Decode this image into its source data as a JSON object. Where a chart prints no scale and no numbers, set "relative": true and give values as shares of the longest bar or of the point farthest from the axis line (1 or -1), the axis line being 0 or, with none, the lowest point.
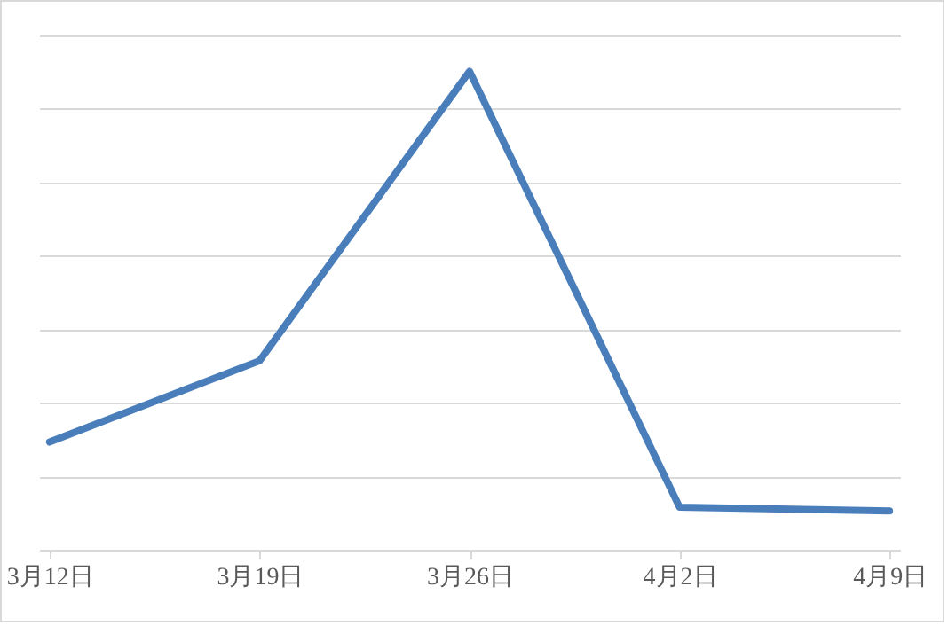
{
  "chart_data": {
    "type": "line",
    "relative": true,
    "categories": [
      "3月12日",
      "3月19日",
      "3月26日",
      "4月2日",
      "4月9日"
    ],
    "series": [
      {
        "color": "#4a7ebb",
        "values": [
          0.225,
          0.395,
          1,
          0.089,
          0.081
        ]
      }
    ],
    "grid": "y",
    "marker": "none",
    "line_style": "solid"
  }
}
